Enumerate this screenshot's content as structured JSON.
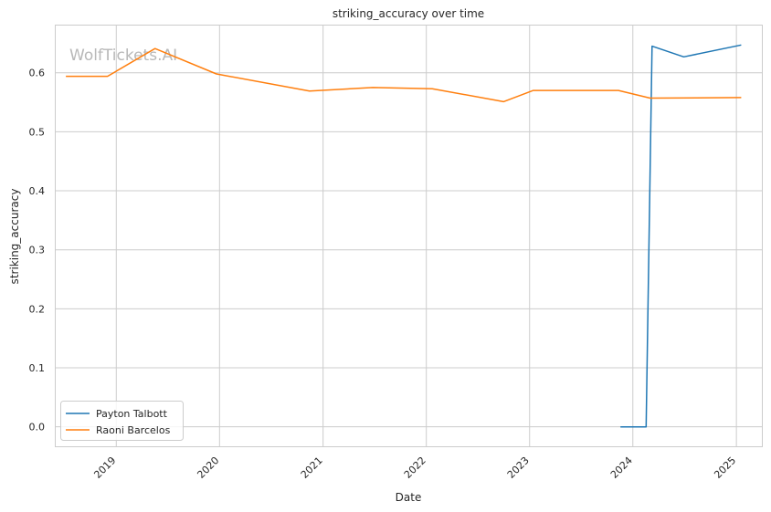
{
  "chart_data": {
    "type": "line",
    "title": "striking_accuracy over time",
    "xlabel": "Date",
    "ylabel": "striking_accuracy",
    "watermark": "WolfTickets.AI",
    "x_ticks": [
      "2019",
      "2020",
      "2021",
      "2022",
      "2023",
      "2024",
      "2025"
    ],
    "y_ticks": [
      "0.0",
      "0.1",
      "0.2",
      "0.3",
      "0.4",
      "0.5",
      "0.6"
    ],
    "xlim": [
      "2018-06-01",
      "2025-04-01"
    ],
    "ylim": [
      -0.033,
      0.68
    ],
    "grid": true,
    "legend_position": "lower-left",
    "series": [
      {
        "name": "Payton Talbott",
        "color": "#1f77b4",
        "points": [
          {
            "x": "2023-11-18",
            "y": 0.0
          },
          {
            "x": "2024-02-17",
            "y": 0.0
          },
          {
            "x": "2024-03-09",
            "y": 0.645
          },
          {
            "x": "2024-06-29",
            "y": 0.627
          },
          {
            "x": "2025-01-18",
            "y": 0.647
          }
        ]
      },
      {
        "name": "Raoni Barcelos",
        "color": "#ff7f0e",
        "points": [
          {
            "x": "2018-07-07",
            "y": 0.594
          },
          {
            "x": "2018-12-01",
            "y": 0.594
          },
          {
            "x": "2019-05-18",
            "y": 0.641
          },
          {
            "x": "2019-12-21",
            "y": 0.598
          },
          {
            "x": "2020-11-14",
            "y": 0.569
          },
          {
            "x": "2021-06-26",
            "y": 0.575
          },
          {
            "x": "2022-01-22",
            "y": 0.573
          },
          {
            "x": "2022-10-01",
            "y": 0.551
          },
          {
            "x": "2023-01-14",
            "y": 0.57
          },
          {
            "x": "2023-11-11",
            "y": 0.57
          },
          {
            "x": "2024-03-02",
            "y": 0.557
          },
          {
            "x": "2025-01-18",
            "y": 0.558
          }
        ]
      }
    ]
  }
}
